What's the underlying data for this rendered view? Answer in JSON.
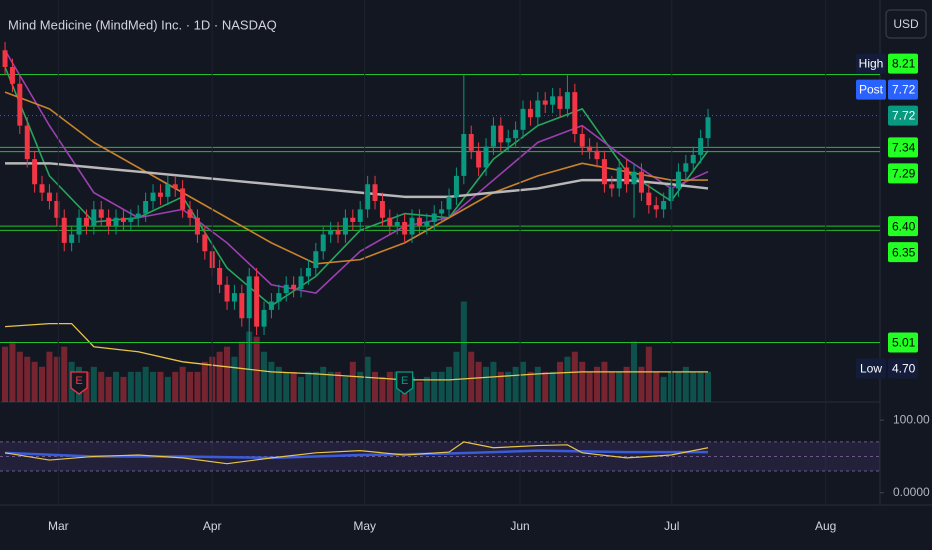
{
  "chart_data": {
    "type": "candlestick",
    "title": "Mind Medicine (MindMed) Inc. · 1D · NASDAQ",
    "currency": "USD",
    "up_color": "#089981",
    "down_color": "#f23645",
    "open": [
      8.5,
      8.3,
      8.1,
      7.6,
      7.2,
      6.9,
      6.8,
      6.7,
      6.5,
      6.2,
      6.3,
      6.5,
      6.4,
      6.6,
      6.5,
      6.4,
      6.5,
      6.45,
      6.5,
      6.55,
      6.7,
      6.8,
      6.75,
      6.9,
      6.85,
      6.6,
      6.5,
      6.3,
      6.1,
      5.9,
      5.7,
      5.5,
      5.6,
      5.3,
      5.8,
      5.2,
      5.4,
      5.5,
      5.6,
      5.7,
      5.65,
      5.8,
      5.9,
      6.1,
      6.3,
      6.35,
      6.3,
      6.5,
      6.45,
      6.6,
      6.9,
      6.7,
      6.5,
      6.4,
      6.45,
      6.3,
      6.5,
      6.4,
      6.45,
      6.55,
      6.6,
      6.75,
      7.0,
      7.5,
      7.3,
      7.1,
      7.35,
      7.6,
      7.4,
      7.45,
      7.55,
      7.8,
      7.7,
      7.9,
      7.85,
      7.95,
      7.8,
      8.0,
      7.5,
      7.35,
      7.3,
      7.2,
      6.9,
      6.85,
      7.1,
      6.9,
      7.05,
      6.8,
      6.65,
      6.6,
      6.7,
      6.85,
      7.05,
      7.15,
      7.25,
      7.45
    ],
    "high": [
      8.6,
      8.4,
      8.2,
      7.7,
      7.3,
      7.0,
      6.9,
      6.8,
      6.6,
      6.4,
      6.6,
      6.6,
      6.7,
      6.7,
      6.6,
      6.6,
      6.6,
      6.6,
      6.65,
      6.8,
      6.9,
      6.9,
      7.0,
      7.0,
      6.95,
      6.7,
      6.6,
      6.4,
      6.2,
      6.0,
      5.8,
      5.7,
      5.7,
      5.9,
      5.9,
      5.5,
      5.6,
      5.7,
      5.8,
      5.8,
      5.9,
      6.0,
      6.2,
      6.4,
      6.45,
      6.45,
      6.6,
      6.6,
      6.7,
      7.0,
      7.0,
      6.8,
      6.6,
      6.55,
      6.55,
      6.6,
      6.6,
      6.55,
      6.65,
      6.7,
      6.85,
      7.1,
      8.21,
      7.6,
      7.4,
      7.45,
      7.7,
      7.7,
      7.55,
      7.65,
      7.9,
      7.9,
      8.0,
      8.0,
      8.05,
      8.05,
      8.21,
      8.1,
      7.6,
      7.45,
      7.4,
      7.3,
      7.0,
      7.2,
      7.2,
      7.15,
      7.15,
      6.9,
      6.75,
      6.8,
      6.95,
      7.15,
      7.25,
      7.35,
      7.55,
      7.8
    ],
    "low": [
      8.2,
      8.0,
      7.5,
      7.1,
      6.8,
      6.7,
      6.6,
      6.4,
      6.1,
      6.1,
      6.2,
      6.3,
      6.3,
      6.4,
      6.3,
      6.3,
      6.35,
      6.35,
      6.4,
      6.45,
      6.6,
      6.65,
      6.65,
      6.75,
      6.5,
      6.4,
      6.2,
      6.0,
      5.8,
      5.6,
      5.4,
      5.4,
      5.2,
      4.7,
      5.1,
      5.1,
      5.3,
      5.4,
      5.5,
      5.55,
      5.55,
      5.7,
      5.8,
      6.0,
      6.2,
      6.2,
      6.2,
      6.35,
      6.35,
      6.5,
      6.6,
      6.4,
      6.3,
      6.3,
      6.2,
      6.2,
      6.3,
      6.3,
      6.35,
      6.45,
      6.5,
      6.65,
      6.9,
      7.2,
      7.0,
      7.0,
      7.25,
      7.3,
      7.3,
      7.35,
      7.45,
      7.6,
      7.6,
      7.75,
      7.75,
      7.7,
      7.7,
      7.4,
      7.25,
      7.2,
      7.1,
      6.8,
      6.75,
      6.75,
      6.8,
      6.5,
      6.7,
      6.55,
      6.5,
      6.5,
      6.6,
      6.75,
      6.95,
      7.05,
      7.15,
      7.35
    ],
    "close": [
      8.3,
      8.1,
      7.6,
      7.2,
      6.9,
      6.8,
      6.7,
      6.5,
      6.2,
      6.3,
      6.5,
      6.4,
      6.6,
      6.5,
      6.4,
      6.5,
      6.45,
      6.5,
      6.55,
      6.7,
      6.8,
      6.75,
      6.9,
      6.85,
      6.6,
      6.5,
      6.3,
      6.1,
      5.9,
      5.7,
      5.5,
      5.6,
      5.3,
      5.8,
      5.2,
      5.4,
      5.5,
      5.6,
      5.7,
      5.65,
      5.8,
      5.9,
      6.1,
      6.3,
      6.35,
      6.3,
      6.5,
      6.45,
      6.6,
      6.9,
      6.7,
      6.5,
      6.4,
      6.45,
      6.3,
      6.5,
      6.4,
      6.45,
      6.55,
      6.6,
      6.75,
      7.0,
      7.5,
      7.3,
      7.1,
      7.35,
      7.6,
      7.4,
      7.45,
      7.55,
      7.8,
      7.7,
      7.9,
      7.85,
      7.95,
      7.8,
      8.0,
      7.5,
      7.35,
      7.3,
      7.2,
      6.9,
      6.85,
      7.1,
      6.9,
      7.05,
      6.8,
      6.65,
      6.6,
      6.7,
      6.85,
      7.05,
      7.15,
      7.25,
      7.45,
      7.7
    ],
    "volume": [
      0.55,
      0.6,
      0.5,
      0.45,
      0.4,
      0.35,
      0.5,
      0.45,
      0.55,
      0.4,
      0.35,
      0.3,
      0.35,
      0.3,
      0.25,
      0.3,
      0.25,
      0.3,
      0.3,
      0.35,
      0.3,
      0.3,
      0.25,
      0.3,
      0.35,
      0.3,
      0.3,
      0.4,
      0.45,
      0.5,
      0.55,
      0.45,
      0.6,
      0.7,
      0.65,
      0.5,
      0.4,
      0.35,
      0.3,
      0.3,
      0.25,
      0.3,
      0.3,
      0.35,
      0.3,
      0.3,
      0.25,
      0.4,
      0.3,
      0.45,
      0.3,
      0.25,
      0.3,
      0.3,
      0.25,
      0.25,
      0.2,
      0.25,
      0.3,
      0.3,
      0.35,
      0.5,
      1.0,
      0.5,
      0.4,
      0.35,
      0.4,
      0.3,
      0.3,
      0.35,
      0.4,
      0.3,
      0.35,
      0.3,
      0.3,
      0.4,
      0.45,
      0.5,
      0.4,
      0.3,
      0.35,
      0.4,
      0.3,
      0.3,
      0.35,
      0.6,
      0.35,
      0.55,
      0.3,
      0.25,
      0.3,
      0.3,
      0.35,
      0.3,
      0.3,
      0.3
    ],
    "xlim": [
      -0.68,
      118.24
    ],
    "ylim": [
      4.3,
      9.1
    ],
    "y3lim": [
      0,
      4
    ],
    "xticks": [
      {
        "value": 7.2,
        "label": "Mar"
      },
      {
        "value": 28,
        "label": "Apr"
      },
      {
        "value": 48.6,
        "label": "May"
      },
      {
        "value": 69.6,
        "label": "Jun"
      },
      {
        "value": 90.1,
        "label": "Jul"
      },
      {
        "value": 110.9,
        "label": "Aug"
      }
    ],
    "levels": [
      {
        "value": 8.21,
        "tag": "High",
        "color": "#22ff22",
        "line": "#22c02a"
      },
      {
        "value": 7.72,
        "tag": "Post",
        "color": "#2962ff",
        "line": "#2962ff"
      },
      {
        "value": 7.72,
        "color": "#089981"
      },
      {
        "value": 7.34,
        "color": "#22ff22",
        "line": "#22c02a"
      },
      {
        "value": 7.29,
        "color": "#22ff22",
        "line": "#22c02a"
      },
      {
        "value": 6.4,
        "label": "6.40",
        "color": "#22ff22",
        "line": "#22c02a"
      },
      {
        "value": 6.35,
        "color": "#22ff22",
        "line": "#22c02a"
      },
      {
        "value": 5.01,
        "color": "#22ff22",
        "line": "#22c02a"
      },
      {
        "value": 4.7,
        "label": "4.70",
        "tag": "Low",
        "color": "#131c3a"
      }
    ],
    "current_level": 2,
    "overlays": [
      {
        "color": "#26a65b",
        "x": [
          0,
          6,
          12,
          18,
          24,
          30,
          36,
          42,
          48,
          54,
          60,
          66,
          72,
          78,
          84,
          90,
          95
        ],
        "values": [
          8.3,
          7.0,
          6.45,
          6.5,
          6.75,
          5.9,
          5.45,
          5.8,
          6.35,
          6.55,
          6.5,
          7.2,
          7.6,
          7.8,
          7.05,
          6.7,
          7.3
        ]
      },
      {
        "color": "#9c3fb0",
        "x": [
          0,
          6,
          12,
          18,
          24,
          30,
          36,
          42,
          48,
          54,
          60,
          66,
          72,
          78,
          84,
          90,
          95
        ],
        "values": [
          8.5,
          7.6,
          6.8,
          6.5,
          6.6,
          6.2,
          5.7,
          5.6,
          6.1,
          6.4,
          6.5,
          6.95,
          7.4,
          7.6,
          7.2,
          6.85,
          7.05
        ]
      },
      {
        "color": "#c8822b",
        "x": [
          0,
          6,
          12,
          18,
          24,
          30,
          36,
          42,
          48,
          54,
          60,
          66,
          72,
          78,
          84,
          90,
          95
        ],
        "values": [
          8.0,
          7.8,
          7.4,
          7.1,
          6.8,
          6.5,
          6.2,
          5.95,
          6.0,
          6.2,
          6.5,
          6.8,
          7.0,
          7.15,
          7.05,
          6.95,
          6.95
        ]
      },
      {
        "color": "#b8b8b8",
        "x": [
          0,
          6,
          12,
          18,
          24,
          30,
          36,
          42,
          48,
          54,
          60,
          66,
          72,
          78,
          84,
          90,
          95
        ],
        "values": [
          7.15,
          7.15,
          7.1,
          7.05,
          7.0,
          6.95,
          6.9,
          6.85,
          6.8,
          6.75,
          6.75,
          6.8,
          6.85,
          6.95,
          6.95,
          6.9,
          6.85
        ]
      }
    ],
    "volume_ma": {
      "color": "#e8c547",
      "x": [
        0,
        6,
        9,
        12,
        18,
        24,
        30,
        36,
        42,
        48,
        54,
        60,
        66,
        72,
        78,
        84,
        90,
        95
      ],
      "values": [
        0.75,
        0.78,
        0.78,
        0.55,
        0.5,
        0.4,
        0.35,
        0.3,
        0.28,
        0.25,
        0.22,
        0.22,
        0.25,
        0.28,
        0.3,
        0.3,
        0.3,
        0.3
      ]
    },
    "events": [
      {
        "x": 10,
        "label": "E",
        "color": "#f23645"
      },
      {
        "x": 54,
        "label": "E",
        "color": "#089981"
      }
    ],
    "rsi": {
      "ylim": [
        -10,
        125
      ],
      "yticks": [
        {
          "value": 100,
          "label": "100.00"
        },
        {
          "value": 0,
          "label": "0.0000"
        }
      ],
      "levels": [
        30,
        50,
        70
      ],
      "series": [
        {
          "color": "#e8c547",
          "x": [
            0,
            6,
            12,
            18,
            24,
            30,
            36,
            42,
            48,
            54,
            60,
            62,
            66,
            72,
            76,
            78,
            84,
            90,
            95
          ],
          "values": [
            55,
            45,
            50,
            52,
            48,
            40,
            48,
            55,
            58,
            52,
            56,
            70,
            62,
            65,
            66,
            55,
            48,
            52,
            62
          ]
        },
        {
          "color": "#3b5bdb",
          "x": [
            0,
            12,
            24,
            36,
            48,
            60,
            72,
            84,
            95
          ],
          "values": [
            55,
            50,
            50,
            48,
            52,
            54,
            58,
            56,
            56
          ]
        }
      ]
    }
  }
}
